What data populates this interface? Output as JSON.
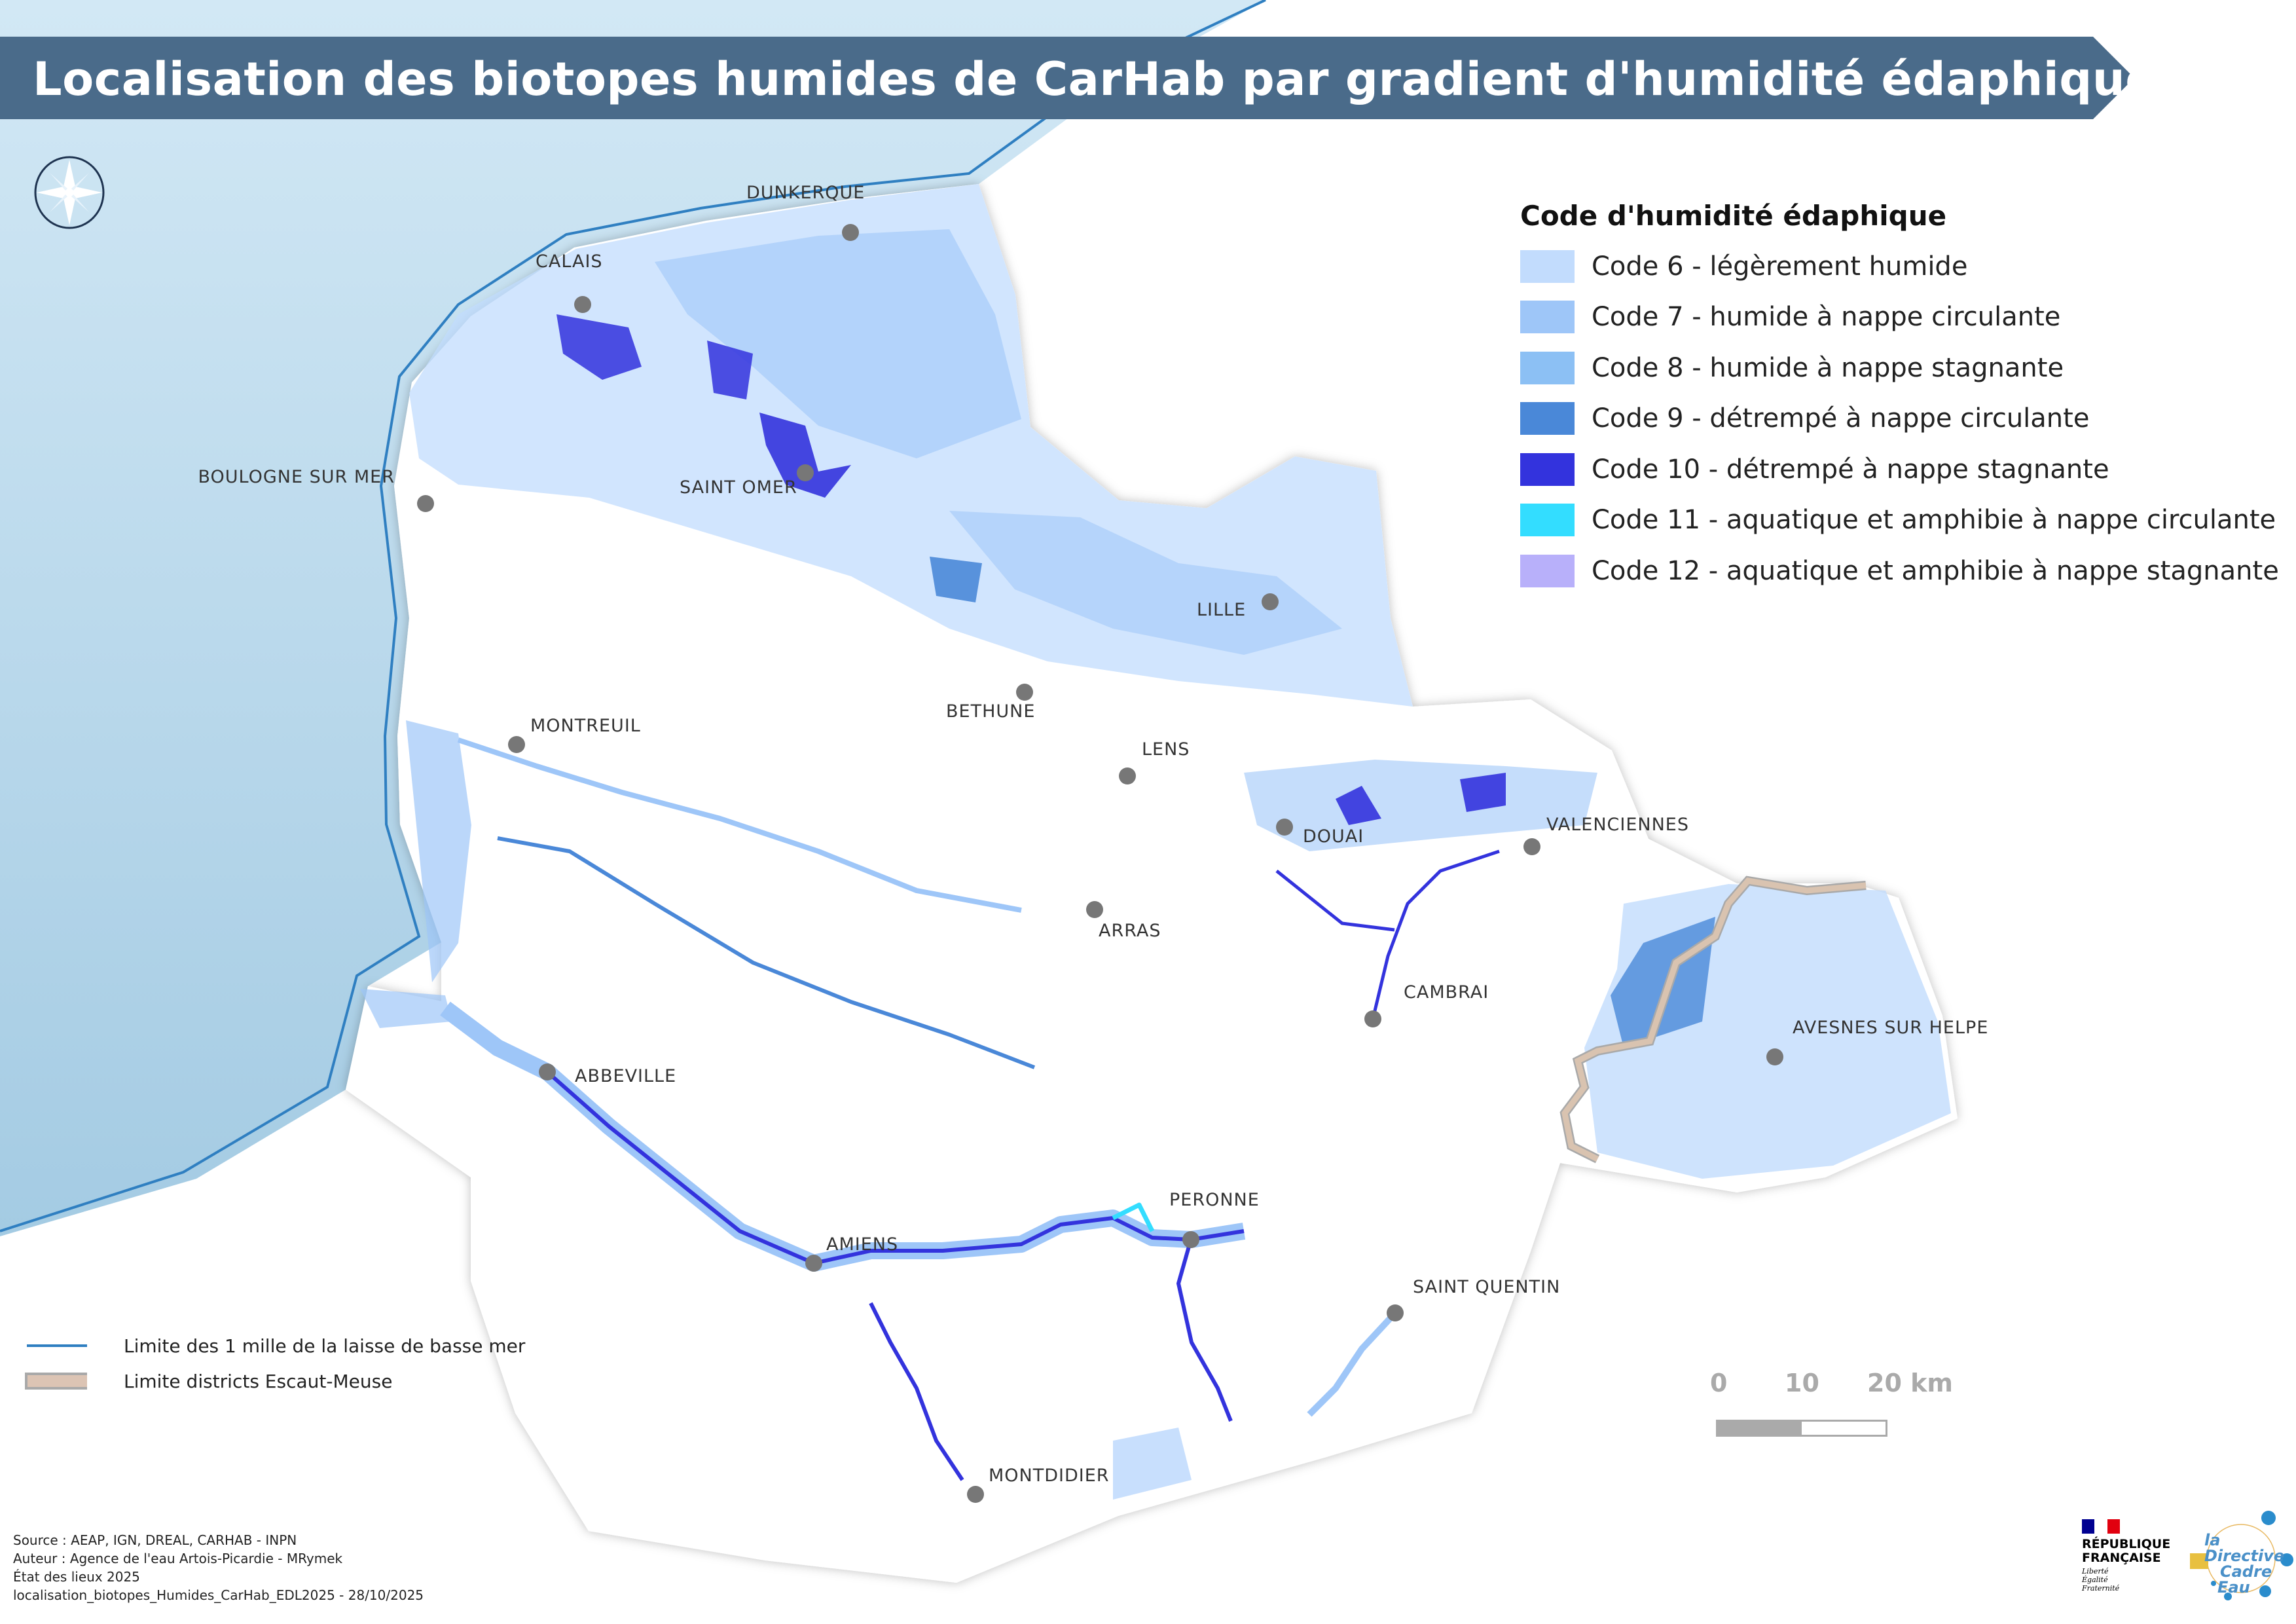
{
  "title": "Localisation des biotopes humides de CarHab par gradient d'humidité édaphique",
  "colors": {
    "title_bar": "#4a6b8a",
    "sea": "#c8e2f2",
    "sea_deep": "#a9cfe6",
    "land": "#ffffff",
    "escaut_meuse_limit": "#cdbbaa",
    "sea_limit": "#2f7fc1",
    "city_dot": "#777777"
  },
  "compass": {
    "icon": "compass-rose-icon"
  },
  "legend": {
    "title": "Code d'humidité édaphique",
    "items": [
      {
        "label": "Code 6 - légèrement humide",
        "color": "#c2dcfd"
      },
      {
        "label": "Code 7 - humide à nappe circulante",
        "color": "#9ec6f8"
      },
      {
        "label": "Code 8 - humide à nappe stagnante",
        "color": "#8cc0f4"
      },
      {
        "label": "Code 9 - détrempé à nappe circulante",
        "color": "#4a88d8"
      },
      {
        "label": "Code 10 - détrempé à nappe stagnante",
        "color": "#3333dd"
      },
      {
        "label": "Code 11 - aquatique et amphibie à nappe circulante",
        "color": "#33ddff"
      },
      {
        "label": "Code 12 - aquatique et amphibie à nappe stagnante",
        "color": "#b8b0fa"
      }
    ]
  },
  "line_legend": {
    "sea_limit": "Limite des 1 mille de la laisse de basse mer",
    "district_limit": "Limite districts Escaut-Meuse"
  },
  "cities": [
    "DUNKERQUE",
    "CALAIS",
    "BOULOGNE SUR MER",
    "SAINT OMER",
    "LILLE",
    "BETHUNE",
    "LENS",
    "MONTREUIL",
    "DOUAI",
    "VALENCIENNES",
    "ARRAS",
    "CAMBRAI",
    "AVESNES SUR HELPE",
    "ABBEVILLE",
    "PERONNE",
    "AMIENS",
    "SAINT QUENTIN",
    "MONTDIDIER"
  ],
  "scale": {
    "labels": [
      "0",
      "10",
      "20 km"
    ]
  },
  "sources": [
    "Source : AEAP, IGN, DREAL, CARHAB - INPN",
    "Auteur : Agence de l'eau Artois-Picardie - MRymek",
    "État des lieux 2025",
    "localisation_biotopes_Humides_CarHab_EDL2025 - 28/10/2025"
  ],
  "logos": {
    "republique": {
      "line1": "RÉPUBLIQUE",
      "line2": "FRANÇAISE",
      "motto": [
        "Liberté",
        "Égalité",
        "Fraternité"
      ]
    },
    "dce": {
      "line1": "la Directive",
      "line2": "Cadre",
      "line3": "Eau"
    }
  }
}
